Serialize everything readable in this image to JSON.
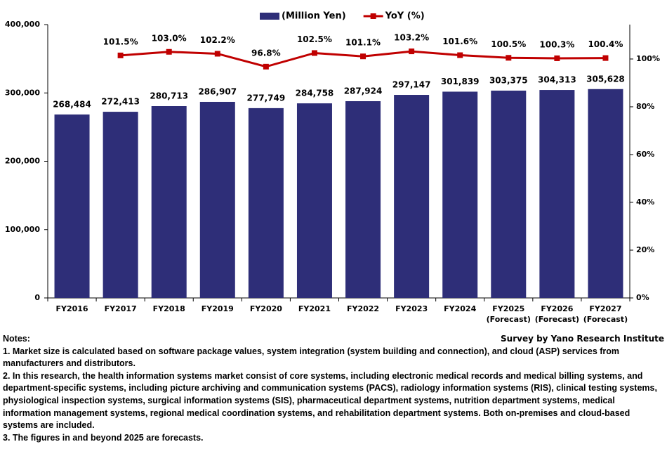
{
  "chart_data": {
    "type": "bar",
    "categories": [
      "FY2016",
      "FY2017",
      "FY2018",
      "FY2019",
      "FY2020",
      "FY2021",
      "FY2022",
      "FY2023",
      "FY2024",
      "FY2025 (Forecast)",
      "FY2026 (Forecast)",
      "FY2027 (Forecast)"
    ],
    "series": [
      {
        "name": "(Million Yen)",
        "type": "bar",
        "color": "#2e2e78",
        "values": [
          268484,
          272413,
          280713,
          286907,
          277749,
          284758,
          287924,
          297147,
          301839,
          303375,
          304313,
          305628
        ],
        "value_labels": [
          "268,484",
          "272,413",
          "280,713",
          "286,907",
          "277,749",
          "284,758",
          "287,924",
          "297,147",
          "301,839",
          "303,375",
          "304,313",
          "305,628"
        ]
      },
      {
        "name": "YoY (%)",
        "type": "line",
        "axis": "y2",
        "color": "#c00000",
        "values": [
          null,
          101.5,
          103.0,
          102.2,
          96.8,
          102.5,
          101.1,
          103.2,
          101.6,
          100.5,
          100.3,
          100.4
        ],
        "value_labels": [
          null,
          "101.5%",
          "103.0%",
          "102.2%",
          "96.8%",
          "102.5%",
          "101.1%",
          "103.2%",
          "101.6%",
          "100.5%",
          "100.3%",
          "100.4%"
        ]
      }
    ],
    "ylim": [
      0,
      400000
    ],
    "yticks": [
      {
        "value": 0,
        "label": "0"
      },
      {
        "value": 100000,
        "label": "100,000"
      },
      {
        "value": 200000,
        "label": "200,000"
      },
      {
        "value": 300000,
        "label": "300,000"
      },
      {
        "value": 400000,
        "label": "400,000"
      }
    ],
    "y2lim": [
      0,
      114.4
    ],
    "y2ticks": [
      {
        "value": 0,
        "label": "0%"
      },
      {
        "value": 20,
        "label": "20%"
      },
      {
        "value": 40,
        "label": "40%"
      },
      {
        "value": 60,
        "label": "60%"
      },
      {
        "value": 80,
        "label": "80%"
      },
      {
        "value": 100,
        "label": "100%"
      }
    ],
    "legend": "top",
    "source": "Survey by Yano Research Institute"
  },
  "notes": {
    "title": "Notes:",
    "items": [
      "1. Market size is calculated based on software package values, system integration (system building and connection), and cloud (ASP) services from manufacturers and distributors.",
      "2. In this research, the health information systems market consist of core systems, including electronic medical records and medical billing systems, and department-specific systems, including picture archiving and communication systems (PACS), radiology information systems (RIS), clinical testing systems, physiological inspection systems, surgical information systems (SIS), pharmaceutical department systems, nutrition department systems, medical information management systems, regional medical coordination systems, and rehabilitation department systems. Both on-premises and cloud-based systems are included.",
      "3. The figures in and beyond 2025 are forecasts."
    ]
  }
}
